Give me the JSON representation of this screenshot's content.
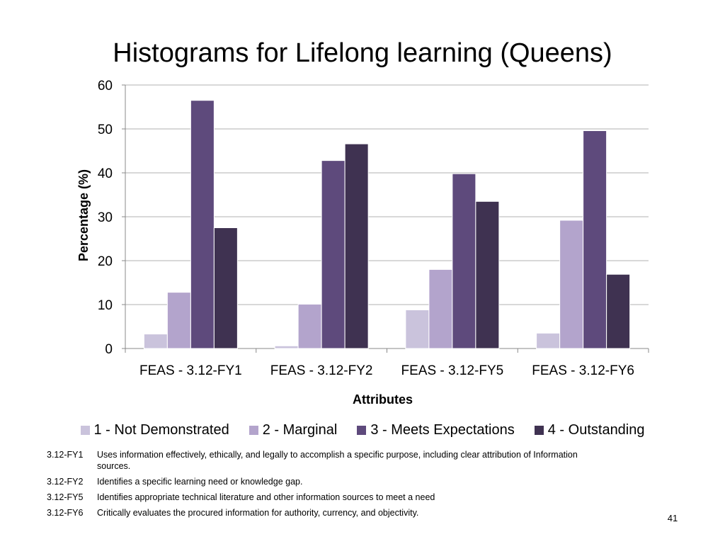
{
  "slide": {
    "title": "Histograms for Lifelong learning (Queens)",
    "page_number": "41"
  },
  "chart_data": {
    "type": "bar",
    "title": "Histograms for Lifelong learning (Queens)",
    "xlabel": "Attributes",
    "ylabel": "Percentage (%)",
    "ylim": [
      0,
      60
    ],
    "yticks": [
      0,
      10,
      20,
      30,
      40,
      50,
      60
    ],
    "grid": true,
    "legend_position": "bottom",
    "categories": [
      "FEAS - 3.12-FY1",
      "FEAS - 3.12-FY2",
      "FEAS - 3.12-FY5",
      "FEAS - 3.12-FY6"
    ],
    "series": [
      {
        "name": "1 - Not Demonstrated",
        "color": "#CAC3DC",
        "values": [
          3.3,
          0.6,
          8.8,
          3.5
        ]
      },
      {
        "name": "2 - Marginal",
        "color": "#B3A4CC",
        "values": [
          12.8,
          10.1,
          18.0,
          29.2
        ]
      },
      {
        "name": "3 - Meets Expectations",
        "color": "#5E4A7C",
        "values": [
          56.5,
          42.8,
          39.8,
          49.6
        ]
      },
      {
        "name": "4 - Outstanding",
        "color": "#3F3251",
        "values": [
          27.5,
          46.6,
          33.5,
          16.9
        ]
      }
    ]
  },
  "notes": [
    {
      "code": "3.12-FY1",
      "text": "Uses information effectively, ethically, and legally to accomplish a specific purpose, including clear attribution of Information sources."
    },
    {
      "code": "3.12-FY2",
      "text": "Identifies a specific learning need or knowledge gap."
    },
    {
      "code": "3.12-FY5",
      "text": "Identifies appropriate technical literature and other information sources to meet a need"
    },
    {
      "code": "3.12-FY6",
      "text": "Critically evaluates the procured information for authority, currency, and objectivity."
    }
  ]
}
